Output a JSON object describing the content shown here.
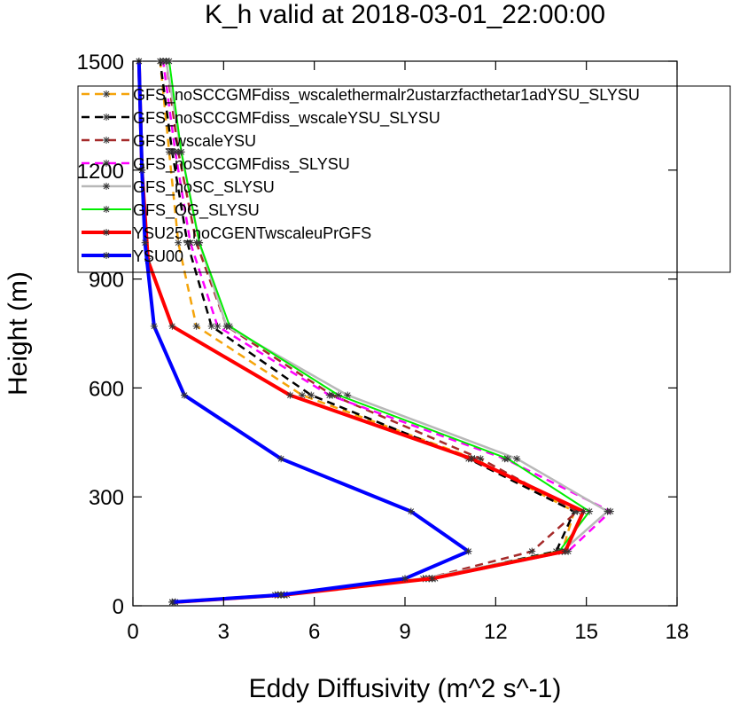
{
  "chart_data": {
    "type": "line",
    "title": "K_h valid at 2018-03-01_22:00:00",
    "xlabel": "Eddy Diffusivity (m^2 s^-1)",
    "ylabel": "Height (m)",
    "xlim": [
      0,
      18
    ],
    "ylim": [
      0,
      1500
    ],
    "xticks": [
      0,
      3,
      6,
      9,
      12,
      15,
      18
    ],
    "yticks": [
      0,
      300,
      600,
      900,
      1200,
      1500
    ],
    "xtick_labels": [
      "0",
      "3",
      "6",
      "9",
      "12",
      "15",
      "18"
    ],
    "ytick_labels": [
      "0",
      "300",
      "600",
      "900",
      "1200",
      "1500"
    ],
    "grid": false,
    "legend_position": "top-left",
    "series": [
      {
        "name": "GFS_noSCCGMFdiss_wscalethermalr2ustarzfacthetar1adYSU_SLYSU",
        "color": "#f5a40a",
        "dash": "dashed",
        "width": 2.5,
        "points": [
          [
            1.4,
            10
          ],
          [
            5.0,
            30
          ],
          [
            9.9,
            75
          ],
          [
            14.2,
            150
          ],
          [
            14.6,
            260
          ],
          [
            11.3,
            405
          ],
          [
            5.6,
            580
          ],
          [
            2.1,
            770
          ],
          [
            1.5,
            1000
          ],
          [
            1.2,
            1250
          ],
          [
            0.9,
            1500
          ]
        ]
      },
      {
        "name": "GFS_noSCCGMFdiss_wscaleYSU_SLYSU",
        "color": "#000000",
        "dash": "dashed",
        "width": 2.5,
        "points": [
          [
            1.4,
            10
          ],
          [
            4.9,
            30
          ],
          [
            9.8,
            75
          ],
          [
            14.0,
            150
          ],
          [
            14.6,
            260
          ],
          [
            11.1,
            405
          ],
          [
            5.9,
            580
          ],
          [
            2.6,
            770
          ],
          [
            1.8,
            1000
          ],
          [
            1.3,
            1250
          ],
          [
            0.9,
            1500
          ]
        ]
      },
      {
        "name": "GFS_wscaleYSU",
        "color": "#a52a2a",
        "dash": "dashed",
        "width": 2.5,
        "points": [
          [
            1.3,
            10
          ],
          [
            4.8,
            30
          ],
          [
            9.7,
            75
          ],
          [
            13.2,
            150
          ],
          [
            14.7,
            260
          ],
          [
            11.5,
            405
          ],
          [
            6.6,
            580
          ],
          [
            3.1,
            770
          ],
          [
            2.1,
            1000
          ],
          [
            1.5,
            1250
          ],
          [
            1.1,
            1500
          ]
        ]
      },
      {
        "name": "GFS_noSCCGMFdiss_SLYSU",
        "color": "#ff00ff",
        "dash": "dashed",
        "width": 2.5,
        "points": [
          [
            1.4,
            10
          ],
          [
            5.1,
            30
          ],
          [
            10.0,
            75
          ],
          [
            14.4,
            150
          ],
          [
            15.8,
            260
          ],
          [
            12.3,
            405
          ],
          [
            6.5,
            580
          ],
          [
            2.8,
            770
          ],
          [
            1.9,
            1000
          ],
          [
            1.4,
            1250
          ],
          [
            1.0,
            1500
          ]
        ]
      },
      {
        "name": "GFS_noSC_SLYSU",
        "color": "#b8b8b8",
        "dash": "solid",
        "width": 2.5,
        "points": [
          [
            1.3,
            10
          ],
          [
            4.7,
            30
          ],
          [
            9.6,
            75
          ],
          [
            14.2,
            150
          ],
          [
            15.7,
            260
          ],
          [
            12.7,
            405
          ],
          [
            7.1,
            580
          ],
          [
            3.1,
            770
          ],
          [
            2.2,
            1000
          ],
          [
            1.6,
            1250
          ],
          [
            1.1,
            1500
          ]
        ]
      },
      {
        "name": "GFS_OG_SLYSU",
        "color": "#00ee00",
        "dash": "solid",
        "width": 2,
        "points": [
          [
            1.3,
            10
          ],
          [
            4.8,
            30
          ],
          [
            9.8,
            75
          ],
          [
            14.1,
            150
          ],
          [
            15.1,
            260
          ],
          [
            12.4,
            405
          ],
          [
            6.8,
            580
          ],
          [
            3.2,
            770
          ],
          [
            2.2,
            1000
          ],
          [
            1.6,
            1250
          ],
          [
            1.2,
            1500
          ]
        ]
      },
      {
        "name": "YSU25_noCGENTwscaleuPrGFS",
        "color": "#ff0000",
        "dash": "solid",
        "width": 4,
        "points": [
          [
            1.4,
            10
          ],
          [
            5.0,
            30
          ],
          [
            9.9,
            75
          ],
          [
            14.3,
            150
          ],
          [
            14.9,
            260
          ],
          [
            11.2,
            405
          ],
          [
            5.2,
            580
          ],
          [
            1.3,
            770
          ],
          [
            0.5,
            950
          ],
          [
            0.3,
            1200
          ],
          [
            0.2,
            1500
          ]
        ]
      },
      {
        "name": "YSU00",
        "color": "#0000ff",
        "dash": "solid",
        "width": 4,
        "points": [
          [
            1.3,
            10
          ],
          [
            4.9,
            30
          ],
          [
            9.0,
            75
          ],
          [
            11.1,
            150
          ],
          [
            9.2,
            260
          ],
          [
            4.9,
            405
          ],
          [
            1.7,
            580
          ],
          [
            0.7,
            770
          ],
          [
            0.4,
            1000
          ],
          [
            0.3,
            1200
          ],
          [
            0.2,
            1500
          ]
        ]
      }
    ]
  }
}
